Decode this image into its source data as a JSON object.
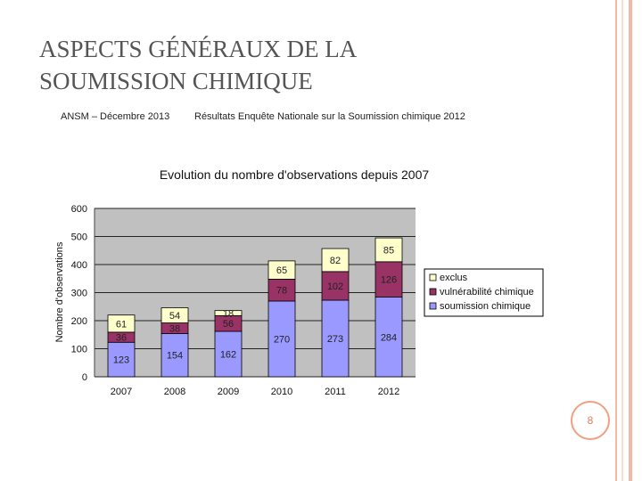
{
  "slide": {
    "title_lines": [
      "ASPECTS GÉNÉRAUX DE LA",
      "SOUMISSION CHIMIQUE"
    ],
    "header_left": "ANSM – Décembre 2013",
    "header_right": "Résultats Enquête Nationale sur la Soumission chimique 2012",
    "page_number": 8
  },
  "chart_data": {
    "type": "stacked_bar",
    "title": "Evolution du nombre d'observations depuis 2007",
    "y_label": "Nombre d'observations",
    "categories": [
      "2007",
      "2008",
      "2009",
      "2010",
      "2011",
      "2012"
    ],
    "series": [
      {
        "name": "soumission chimique",
        "color": "#9999ff",
        "values": [
          123,
          154,
          162,
          270,
          273,
          284
        ]
      },
      {
        "name": "vulnérabilité chimique",
        "color": "#993366",
        "values": [
          36,
          38,
          56,
          78,
          102,
          126
        ]
      },
      {
        "name": "exclus",
        "color": "#ffffcc",
        "values": [
          61,
          54,
          18,
          65,
          82,
          85
        ]
      }
    ],
    "ylim": [
      0,
      600
    ],
    "yticks": [
      0,
      100,
      200,
      300,
      400,
      500,
      600
    ],
    "grid": true
  }
}
